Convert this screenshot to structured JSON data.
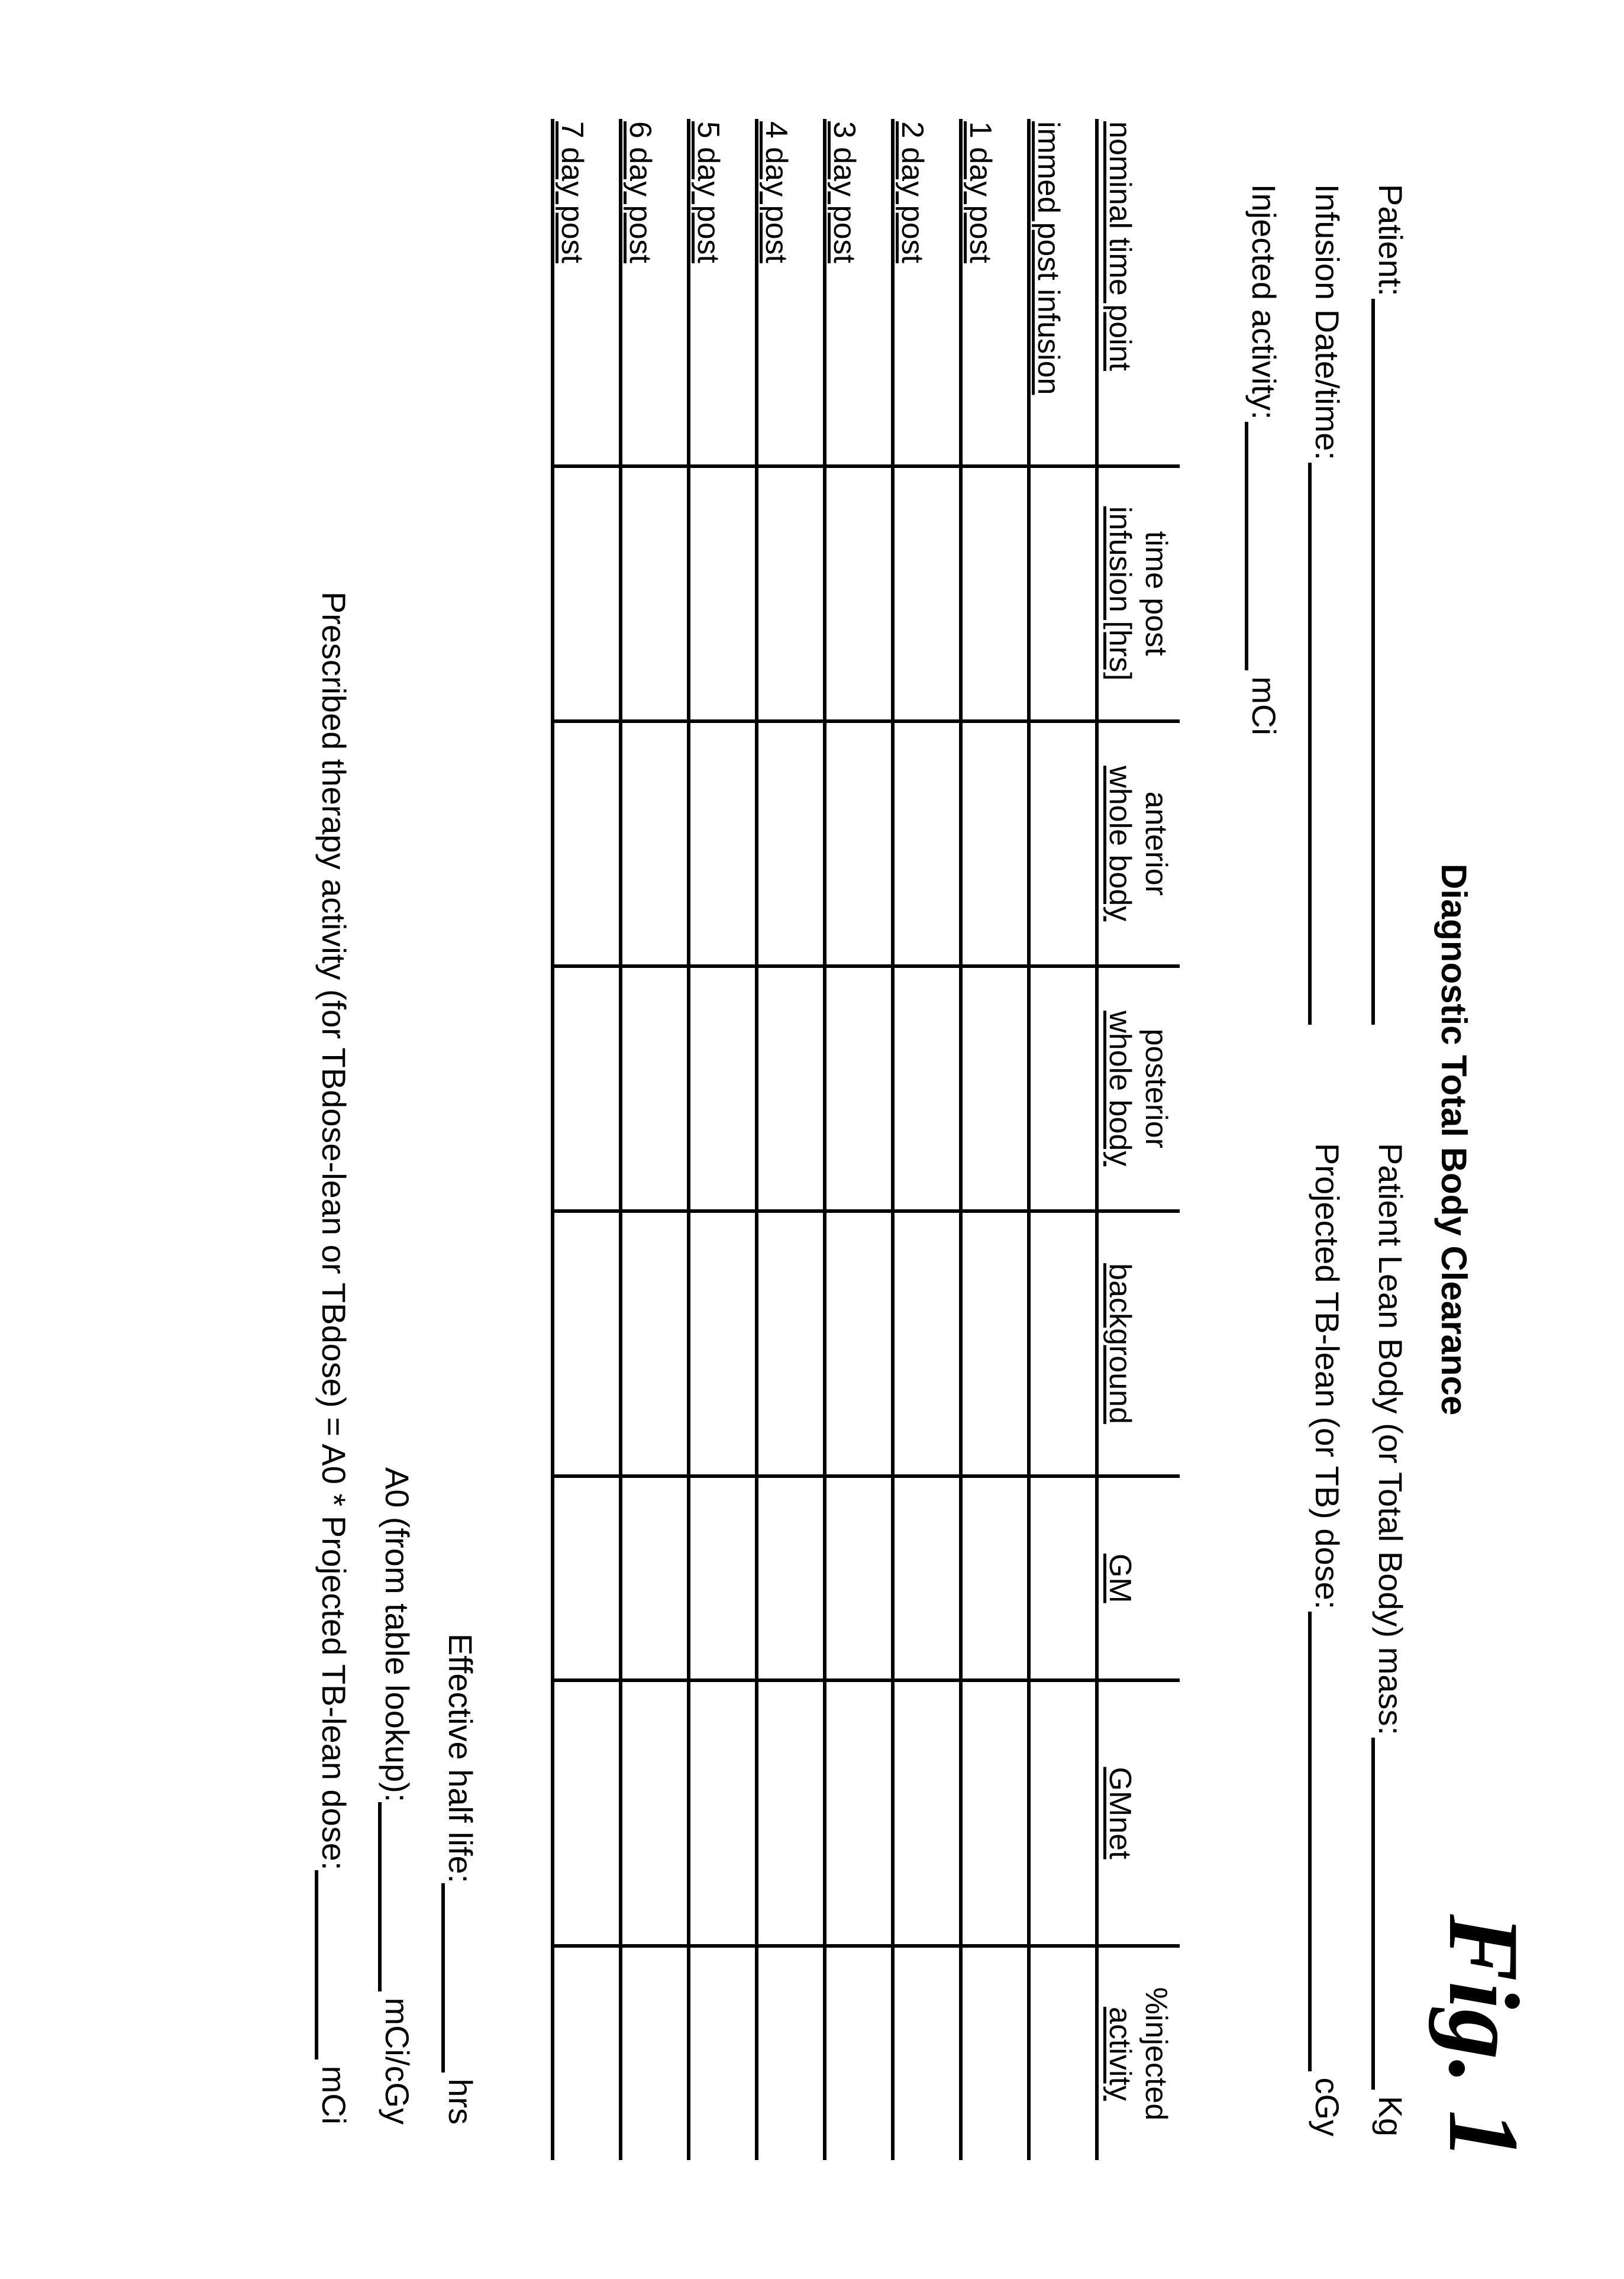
{
  "fig_label": "Fig. 1",
  "doc_title": "Diagnostic Total Body Clearance",
  "info": {
    "patient_lbl": "Patient:",
    "lean_mass_lbl": "Patient Lean Body (or Total Body) mass:",
    "lean_mass_unit": "Kg",
    "infusion_dt_lbl": "Infusion Date/time:",
    "projected_lbl": "Projected TB-lean (or TB) dose:",
    "projected_unit": "cGy",
    "injected_lbl": "Injected activity:",
    "injected_unit": "mCi"
  },
  "table": {
    "head_top": [
      "",
      "time post",
      "anterior",
      "posterior",
      "",
      "",
      "",
      "%injected"
    ],
    "head_bot": [
      "nominal time point",
      "infusion  [hrs]",
      "whole body",
      "whole body",
      "background",
      "GM",
      "GMnet",
      "activity"
    ],
    "rows": [
      "immed post infusion",
      "1 day post",
      "2 day post",
      "3 day post",
      "4 day post",
      "5 day post",
      "6 day post",
      "7 day post"
    ]
  },
  "footer": {
    "ehl_lbl": "Effective half life:",
    "ehl_unit": "hrs",
    "a0_lbl": "A0 (from table lookup):",
    "a0_unit": "mCi/cGy",
    "rx_lbl": "Prescribed therapy activity (for TBdose-lean or TBdose) = A0 * Projected TB-lean dose:",
    "rx_unit": "mCi"
  }
}
